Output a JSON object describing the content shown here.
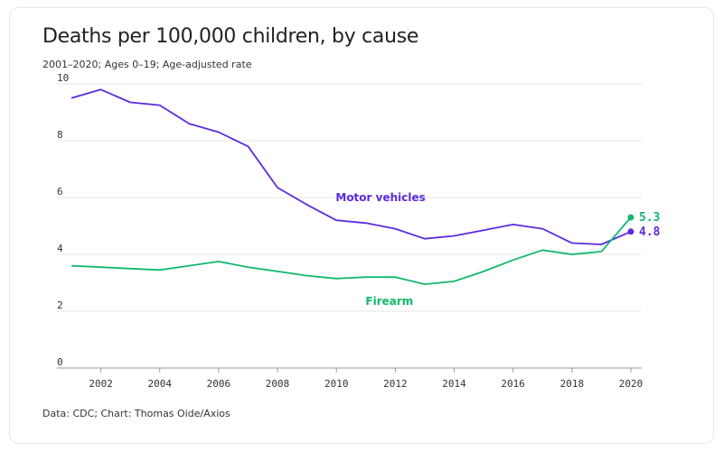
{
  "title": "Deaths per 100,000 children, by cause",
  "subtitle": "2001–2020; Ages 0–19; Age-adjusted rate",
  "source": "Data: CDC; Chart: Thomas Oide/Axios",
  "colors": {
    "motor": "#5b2be0",
    "firearm": "#11b86e",
    "grid": "#e4e4e4",
    "axis": "#999999"
  },
  "chart_data": {
    "type": "line",
    "x": [
      2001,
      2002,
      2003,
      2004,
      2005,
      2006,
      2007,
      2008,
      2009,
      2010,
      2011,
      2012,
      2013,
      2014,
      2015,
      2016,
      2017,
      2018,
      2019,
      2020
    ],
    "series": [
      {
        "name": "Motor vehicles",
        "values": [
          9.5,
          9.8,
          9.35,
          9.25,
          8.6,
          8.3,
          7.8,
          6.35,
          5.75,
          5.2,
          5.1,
          4.9,
          4.55,
          4.65,
          4.85,
          5.05,
          4.9,
          4.4,
          4.35,
          4.8
        ],
        "end_label": "4.8"
      },
      {
        "name": "Firearm",
        "values": [
          3.6,
          3.55,
          3.5,
          3.45,
          3.6,
          3.75,
          3.55,
          3.4,
          3.25,
          3.15,
          3.2,
          3.2,
          2.95,
          3.05,
          3.4,
          3.8,
          4.15,
          4.0,
          4.1,
          5.3
        ],
        "end_label": "5.3"
      }
    ],
    "x_ticks": [
      "2002",
      "2004",
      "2006",
      "2008",
      "2010",
      "2012",
      "2014",
      "2016",
      "2018",
      "2020"
    ],
    "y_ticks": [
      "0",
      "2",
      "4",
      "6",
      "8",
      "10"
    ],
    "xlim": [
      2001,
      2020
    ],
    "ylim": [
      0,
      10
    ],
    "grid": true
  }
}
